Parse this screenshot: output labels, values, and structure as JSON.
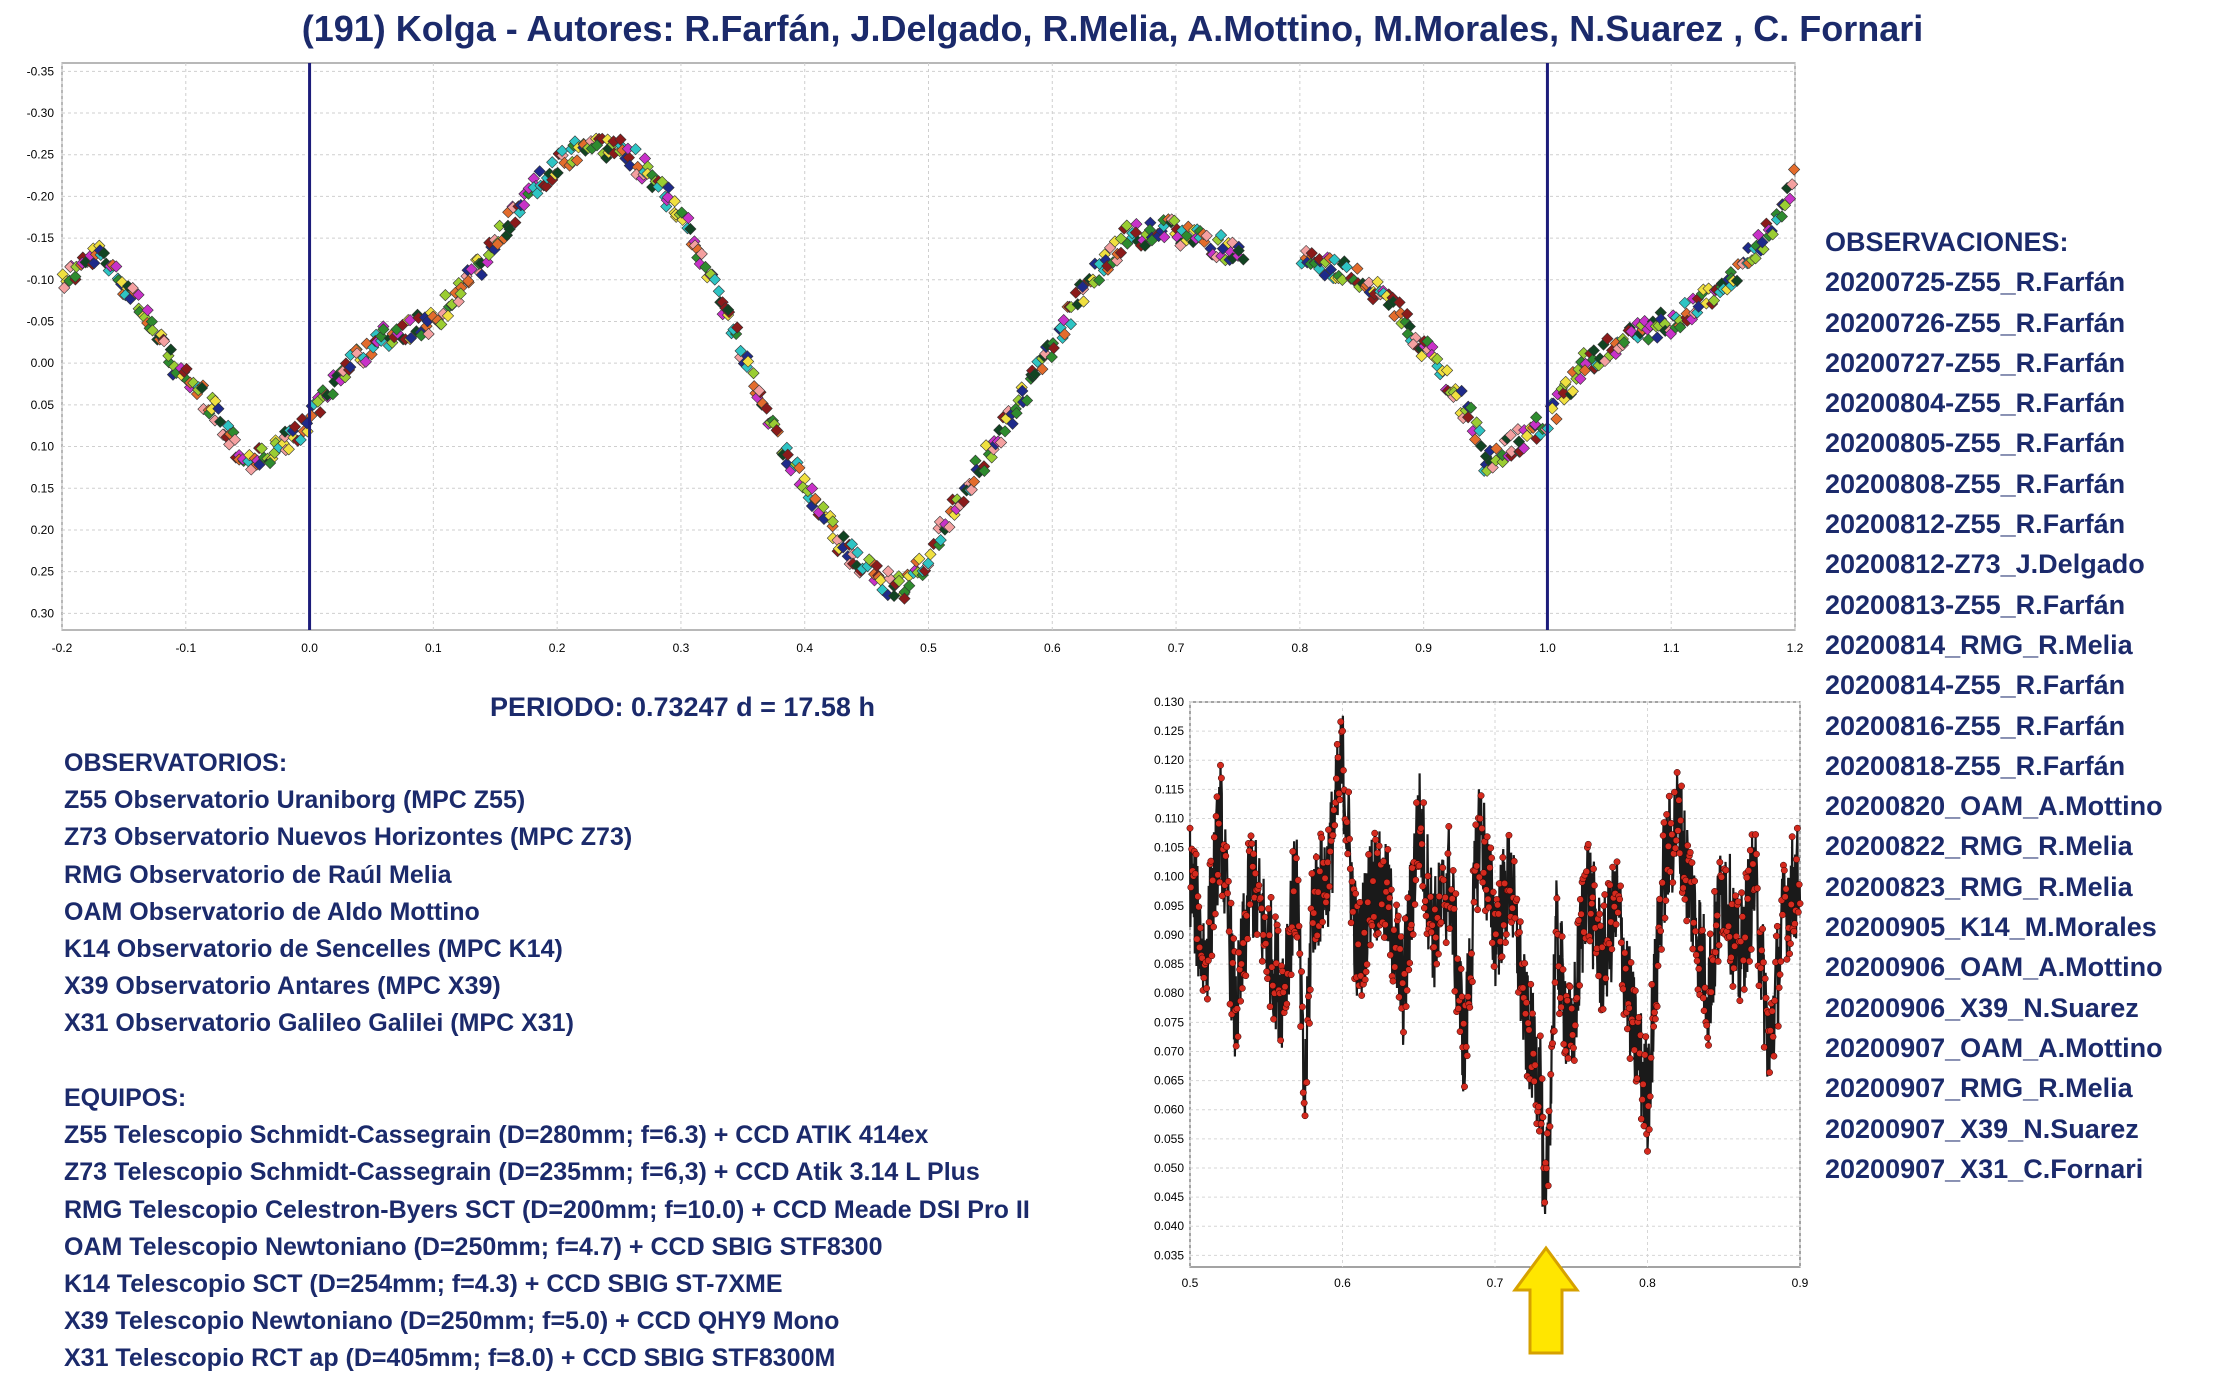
{
  "title": "(191) Kolga - Autores: R.Farfán, J.Delgado, R.Melia, A.Mottino, M.Morales, N.Suarez , C. Fornari",
  "period_text": "PERIODO: 0.73247 d = 17.58 h",
  "observatorios": {
    "heading": "OBSERVATORIOS:",
    "items": [
      "Z55 Observatorio Uraniborg (MPC Z55)",
      "Z73 Observatorio Nuevos Horizontes (MPC Z73)",
      "RMG Observatorio de Raúl Melia",
      "OAM Observatorio de Aldo Mottino",
      "K14 Observatorio de Sencelles (MPC K14)",
      "X39 Observatorio Antares (MPC X39)",
      "X31 Observatorio Galileo Galilei (MPC X31)"
    ]
  },
  "equipos": {
    "heading": "EQUIPOS:",
    "items": [
      "Z55 Telescopio Schmidt-Cassegrain (D=280mm; f=6.3) + CCD ATIK 414ex",
      "Z73 Telescopio Schmidt-Cassegrain (D=235mm; f=6,3) + CCD Atik 3.14 L Plus",
      "RMG Telescopio Celestron-Byers SCT (D=200mm; f=10.0) + CCD Meade DSI Pro II",
      "OAM Telescopio Newtoniano (D=250mm; f=4.7) + CCD SBIG STF8300",
      "K14 Telescopio SCT (D=254mm; f=4.3) + CCD SBIG ST-7XME",
      "X39 Telescopio Newtoniano (D=250mm; f=5.0) + CCD QHY9 Mono",
      "X31 Telescopio RCT ap (D=405mm; f=8.0) + CCD SBIG STF8300M"
    ]
  },
  "observaciones": {
    "heading": "OBSERVACIONES:",
    "items": [
      "20200725-Z55_R.Farfán",
      "20200726-Z55_R.Farfán",
      "20200727-Z55_R.Farfán",
      "20200804-Z55_R.Farfán",
      "20200805-Z55_R.Farfán",
      "20200808-Z55_R.Farfán",
      "20200812-Z55_R.Farfán",
      "20200812-Z73_J.Delgado",
      "20200813-Z55_R.Farfán",
      "20200814_RMG_R.Melia",
      "20200814-Z55_R.Farfán",
      "20200816-Z55_R.Farfán",
      "20200818-Z55_R.Farfán",
      "20200820_OAM_A.Mottino",
      "20200822_RMG_R.Melia",
      "20200823_RMG_R.Melia",
      "20200905_K14_M.Morales",
      "20200906_OAM_A.Mottino",
      "20200906_X39_N.Suarez",
      "20200907_OAM_A.Mottino",
      "20200907_RMG_R.Melia",
      "20200907_X39_N.Suarez",
      "20200907_X31_C.Fornari"
    ]
  },
  "colors": {
    "text": "#1b2a6b",
    "phase_lines": "#1c1c7a",
    "periodogram_points": "#d42a1e",
    "arrow_fill": "#ffe600",
    "arrow_stroke": "#d6a100"
  },
  "chart_data": [
    {
      "type": "scatter",
      "title": "",
      "xlabel": "",
      "ylabel": "",
      "xlim": [
        -0.2,
        1.2
      ],
      "ylim": [
        -0.36,
        0.32
      ],
      "y_inverted": true,
      "grid": true,
      "x_ticks": [
        "-0.2",
        "-0.1",
        "0.0",
        "0.1",
        "0.2",
        "0.3",
        "0.4",
        "0.5",
        "0.6",
        "0.7",
        "0.8",
        "0.9",
        "1.0",
        "1.1",
        "1.2"
      ],
      "y_ticks": [
        "-0.35",
        "-0.30",
        "-0.25",
        "-0.20",
        "-0.15",
        "-0.10",
        "-0.05",
        "0.00",
        "0.05",
        "0.10",
        "0.15",
        "0.20",
        "0.25",
        "0.30"
      ],
      "vertical_lines": [
        0.0,
        1.0
      ],
      "series_colors": [
        "#2ec4c4",
        "#8b1a1a",
        "#1e2a8a",
        "#2e8b2e",
        "#e36c2c",
        "#c832c8",
        "#f0e040",
        "#f4a0a0",
        "#114422",
        "#9acd32"
      ],
      "phase": [
        -0.2,
        -0.17,
        -0.14,
        -0.12,
        -0.1,
        -0.08,
        -0.06,
        -0.05,
        -0.03,
        0.0,
        0.03,
        0.06,
        0.1,
        0.14,
        0.18,
        0.22,
        0.25,
        0.28,
        0.31,
        0.34,
        0.37,
        0.4,
        0.43,
        0.46,
        0.48,
        0.5,
        0.53,
        0.56,
        0.6,
        0.63,
        0.66,
        0.69,
        0.72,
        0.75,
        0.78,
        0.82,
        0.85,
        0.88,
        0.91,
        0.94,
        0.95,
        0.97,
        1.0,
        1.03,
        1.06,
        1.1,
        1.14,
        1.18,
        1.2
      ],
      "magnitude": [
        -0.1,
        -0.13,
        -0.08,
        -0.02,
        0.02,
        0.05,
        0.1,
        0.12,
        0.11,
        0.07,
        0.0,
        -0.03,
        -0.05,
        -0.12,
        -0.21,
        -0.26,
        -0.26,
        -0.22,
        -0.15,
        -0.05,
        0.06,
        0.15,
        0.22,
        0.26,
        0.27,
        0.23,
        0.15,
        0.08,
        -0.02,
        -0.1,
        -0.15,
        -0.16,
        -0.15,
        -0.13,
        -0.12,
        -0.12,
        -0.1,
        -0.06,
        0.0,
        0.07,
        0.12,
        0.1,
        0.07,
        0.0,
        -0.03,
        -0.05,
        -0.09,
        -0.16,
        -0.22
      ]
    },
    {
      "type": "scatter",
      "title": "",
      "xlabel": "",
      "ylabel": "",
      "xlim": [
        0.5,
        0.9
      ],
      "ylim": [
        0.033,
        0.13
      ],
      "grid": true,
      "x_ticks": [
        "0.5",
        "0.6",
        "0.7",
        "0.8",
        "0.9"
      ],
      "y_ticks": [
        "0.130",
        "0.125",
        "0.120",
        "0.115",
        "0.110",
        "0.105",
        "0.100",
        "0.095",
        "0.090",
        "0.085",
        "0.080",
        "0.075",
        "0.070",
        "0.065",
        "0.060",
        "0.055",
        "0.050",
        "0.045",
        "0.040",
        "0.035"
      ],
      "period_days": [
        0.5,
        0.51,
        0.52,
        0.53,
        0.54,
        0.55,
        0.56,
        0.57,
        0.575,
        0.58,
        0.59,
        0.6,
        0.61,
        0.62,
        0.63,
        0.64,
        0.65,
        0.66,
        0.67,
        0.68,
        0.69,
        0.7,
        0.71,
        0.72,
        0.73,
        0.7325,
        0.74,
        0.75,
        0.76,
        0.77,
        0.78,
        0.79,
        0.8,
        0.81,
        0.82,
        0.83,
        0.84,
        0.85,
        0.86,
        0.87,
        0.88,
        0.89,
        0.9
      ],
      "rms": [
        0.1,
        0.085,
        0.11,
        0.075,
        0.1,
        0.09,
        0.08,
        0.1,
        0.06,
        0.095,
        0.1,
        0.12,
        0.085,
        0.1,
        0.095,
        0.08,
        0.11,
        0.09,
        0.1,
        0.07,
        0.11,
        0.09,
        0.1,
        0.075,
        0.065,
        0.037,
        0.09,
        0.07,
        0.1,
        0.085,
        0.095,
        0.075,
        0.062,
        0.1,
        0.11,
        0.095,
        0.08,
        0.1,
        0.085,
        0.1,
        0.07,
        0.095,
        0.1
      ]
    }
  ]
}
